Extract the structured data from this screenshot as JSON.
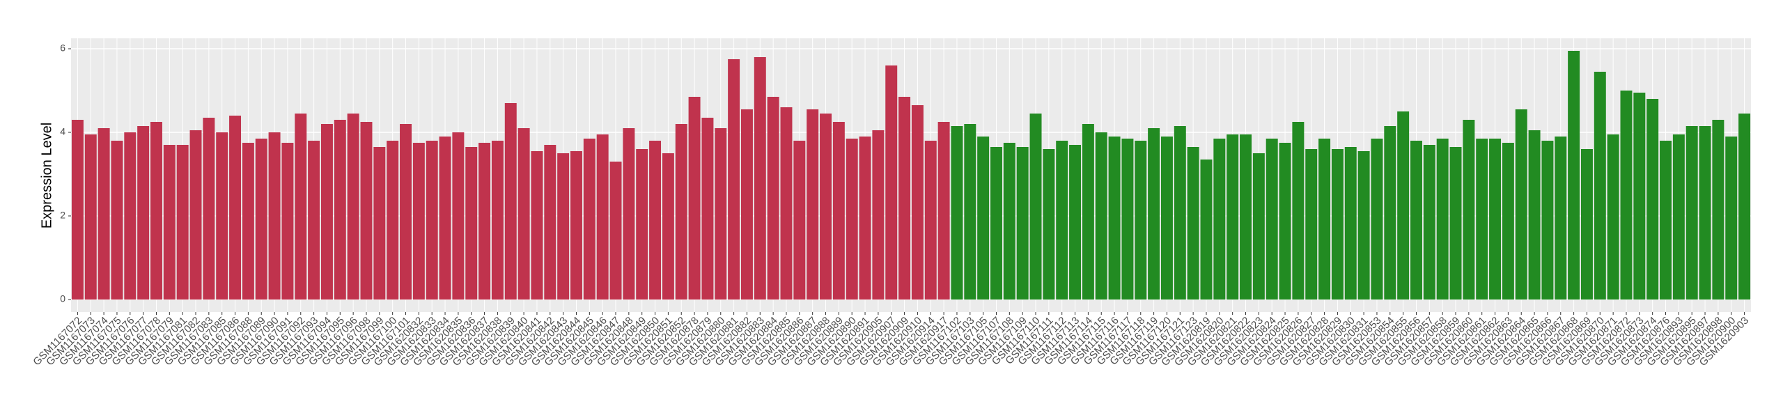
{
  "chart_data": {
    "type": "bar",
    "y_label": "Expression Level",
    "categories": [
      "GSM1167072",
      "GSM1167073",
      "GSM1167074",
      "GSM1167075",
      "GSM1167076",
      "GSM1167077",
      "GSM1167078",
      "GSM1167079",
      "GSM1167081",
      "GSM1167082",
      "GSM1167083",
      "GSM1167085",
      "GSM1167086",
      "GSM1167088",
      "GSM1167089",
      "GSM1167090",
      "GSM1167091",
      "GSM1167092",
      "GSM1167093",
      "GSM1167094",
      "GSM1167095",
      "GSM1167096",
      "GSM1167098",
      "GSM1167099",
      "GSM1167100",
      "GSM1167101",
      "GSM1620832",
      "GSM1620833",
      "GSM1620834",
      "GSM1620835",
      "GSM1620836",
      "GSM1620837",
      "GSM1620838",
      "GSM1620839",
      "GSM1620840",
      "GSM1620841",
      "GSM1620842",
      "GSM1620843",
      "GSM1620844",
      "GSM1620845",
      "GSM1620846",
      "GSM1620847",
      "GSM1620848",
      "GSM1620849",
      "GSM1620850",
      "GSM1620851",
      "GSM1620852",
      "GSM1620878",
      "GSM1620879",
      "GSM1620880",
      "GSM1620881",
      "GSM1620882",
      "GSM1620883",
      "GSM1620884",
      "GSM1620885",
      "GSM1620886",
      "GSM1620887",
      "GSM1620888",
      "GSM1620889",
      "GSM1620890",
      "GSM1620891",
      "GSM1620905",
      "GSM1620907",
      "GSM1620909",
      "GSM1620910",
      "GSM1620914",
      "GSM1620917",
      "GSM1167102",
      "GSM1167103",
      "GSM1167105",
      "GSM1167107",
      "GSM1167108",
      "GSM1167109",
      "GSM1167110",
      "GSM1167111",
      "GSM1167112",
      "GSM1167113",
      "GSM1167114",
      "GSM1167115",
      "GSM1167116",
      "GSM1167117",
      "GSM1167118",
      "GSM1167119",
      "GSM1167120",
      "GSM1167121",
      "GSM1167123",
      "GSM1620819",
      "GSM1620820",
      "GSM1620821",
      "GSM1620822",
      "GSM1620823",
      "GSM1620824",
      "GSM1620825",
      "GSM1620826",
      "GSM1620827",
      "GSM1620828",
      "GSM1620829",
      "GSM1620830",
      "GSM1620831",
      "GSM1620853",
      "GSM1620854",
      "GSM1620855",
      "GSM1620856",
      "GSM1620857",
      "GSM1620858",
      "GSM1620859",
      "GSM1620860",
      "GSM1620861",
      "GSM1620862",
      "GSM1620863",
      "GSM1620864",
      "GSM1620865",
      "GSM1620866",
      "GSM1620867",
      "GSM1620868",
      "GSM1620869",
      "GSM1620870",
      "GSM1620871",
      "GSM1620872",
      "GSM1620873",
      "GSM1620874",
      "GSM1620876",
      "GSM1620893",
      "GSM1620895",
      "GSM1620897",
      "GSM1620898",
      "GSM1620900",
      "GSM1620903"
    ],
    "series": [
      {
        "color": "#c0334d",
        "values": [
          4.3,
          3.95,
          4.1,
          3.8,
          4.0,
          4.15,
          4.25,
          3.7,
          3.7,
          4.05,
          4.35,
          4.0,
          4.4,
          3.75,
          3.85,
          4.0,
          3.75,
          4.45,
          3.8,
          4.2,
          4.3,
          4.45,
          4.25,
          3.65,
          3.8,
          4.2,
          3.75,
          3.8,
          3.9,
          4.0,
          3.65,
          3.75,
          3.8,
          4.7,
          4.1,
          3.55,
          3.7,
          3.5,
          3.55,
          3.85,
          3.95,
          3.3,
          4.1,
          3.6,
          3.8,
          3.5,
          4.2,
          4.85,
          4.35,
          4.1,
          5.75,
          4.55,
          5.8,
          4.85,
          4.6,
          3.8,
          4.55,
          4.45,
          4.25,
          3.85,
          3.9,
          4.05,
          5.6,
          4.85,
          4.65,
          3.8,
          4.25,
          null,
          null,
          null,
          null,
          null,
          null,
          null,
          null,
          null,
          null,
          null,
          null,
          null,
          null,
          null,
          null,
          null,
          null,
          null,
          null,
          null,
          null,
          null,
          null,
          null,
          null,
          null,
          null,
          null,
          null,
          null,
          null,
          null,
          null,
          null,
          null,
          null,
          null,
          null,
          null,
          null,
          null,
          null,
          null,
          null,
          null,
          null,
          null,
          null,
          null,
          null,
          null,
          null,
          null,
          null,
          null,
          null,
          null,
          null,
          null,
          null
        ]
      },
      {
        "color": "#228b22",
        "values": [
          null,
          null,
          null,
          null,
          null,
          null,
          null,
          null,
          null,
          null,
          null,
          null,
          null,
          null,
          null,
          null,
          null,
          null,
          null,
          null,
          null,
          null,
          null,
          null,
          null,
          null,
          null,
          null,
          null,
          null,
          null,
          null,
          null,
          null,
          null,
          null,
          null,
          null,
          null,
          null,
          null,
          null,
          null,
          null,
          null,
          null,
          null,
          null,
          null,
          null,
          null,
          null,
          null,
          null,
          null,
          null,
          null,
          null,
          null,
          null,
          null,
          null,
          null,
          null,
          null,
          null,
          null,
          4.15,
          4.2,
          3.9,
          3.65,
          3.75,
          3.65,
          4.45,
          3.6,
          3.8,
          3.7,
          4.2,
          4.0,
          3.9,
          3.85,
          3.8,
          4.1,
          3.9,
          4.15,
          3.65,
          3.35,
          3.85,
          3.95,
          3.95,
          3.5,
          3.85,
          3.75,
          4.25,
          3.6,
          3.85,
          3.6,
          3.65,
          3.55,
          3.85,
          4.15,
          4.5,
          3.8,
          3.7,
          3.85,
          3.65,
          4.3,
          3.85,
          3.85,
          3.75,
          4.55,
          4.05,
          3.8,
          3.9,
          5.95,
          3.6,
          5.45,
          3.95,
          5.0,
          4.95,
          4.8,
          3.8,
          3.95,
          4.15,
          4.15,
          4.3,
          3.9,
          4.45
        ]
      }
    ],
    "ylim": [
      -0.3,
      6.25
    ],
    "yticks": [
      0,
      2,
      4,
      6
    ],
    "grid": true
  }
}
